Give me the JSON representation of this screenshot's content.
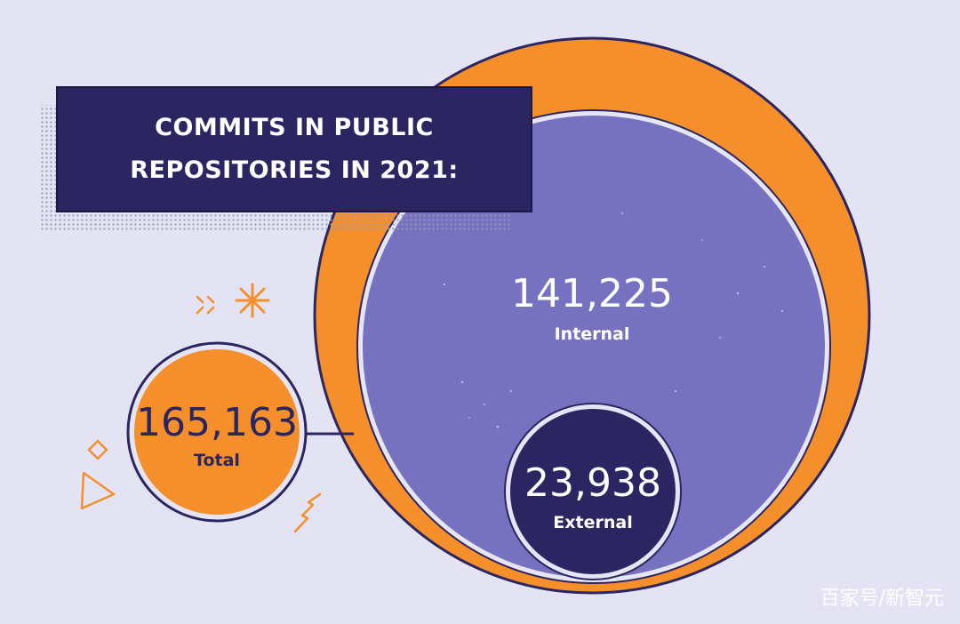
{
  "title_lines": [
    "COMMITS IN PUBLIC",
    "REPOSITORIES IN 2021:"
  ],
  "watermark": "百家号/新智元",
  "colors": {
    "background": "#e4e3f3",
    "navy": "#2b2561",
    "orange": "#f48f2c",
    "purple": "#7672c0",
    "ring": "#e6e5f6"
  },
  "chart_data": {
    "type": "bubble",
    "title": "COMMITS IN PUBLIC REPOSITORIES IN 2021:",
    "bubbles": [
      {
        "label": "Total",
        "value": 165163,
        "display": "165,163"
      },
      {
        "label": "Internal",
        "value": 141225,
        "display": "141,225"
      },
      {
        "label": "External",
        "value": 23938,
        "display": "23,938"
      }
    ]
  }
}
